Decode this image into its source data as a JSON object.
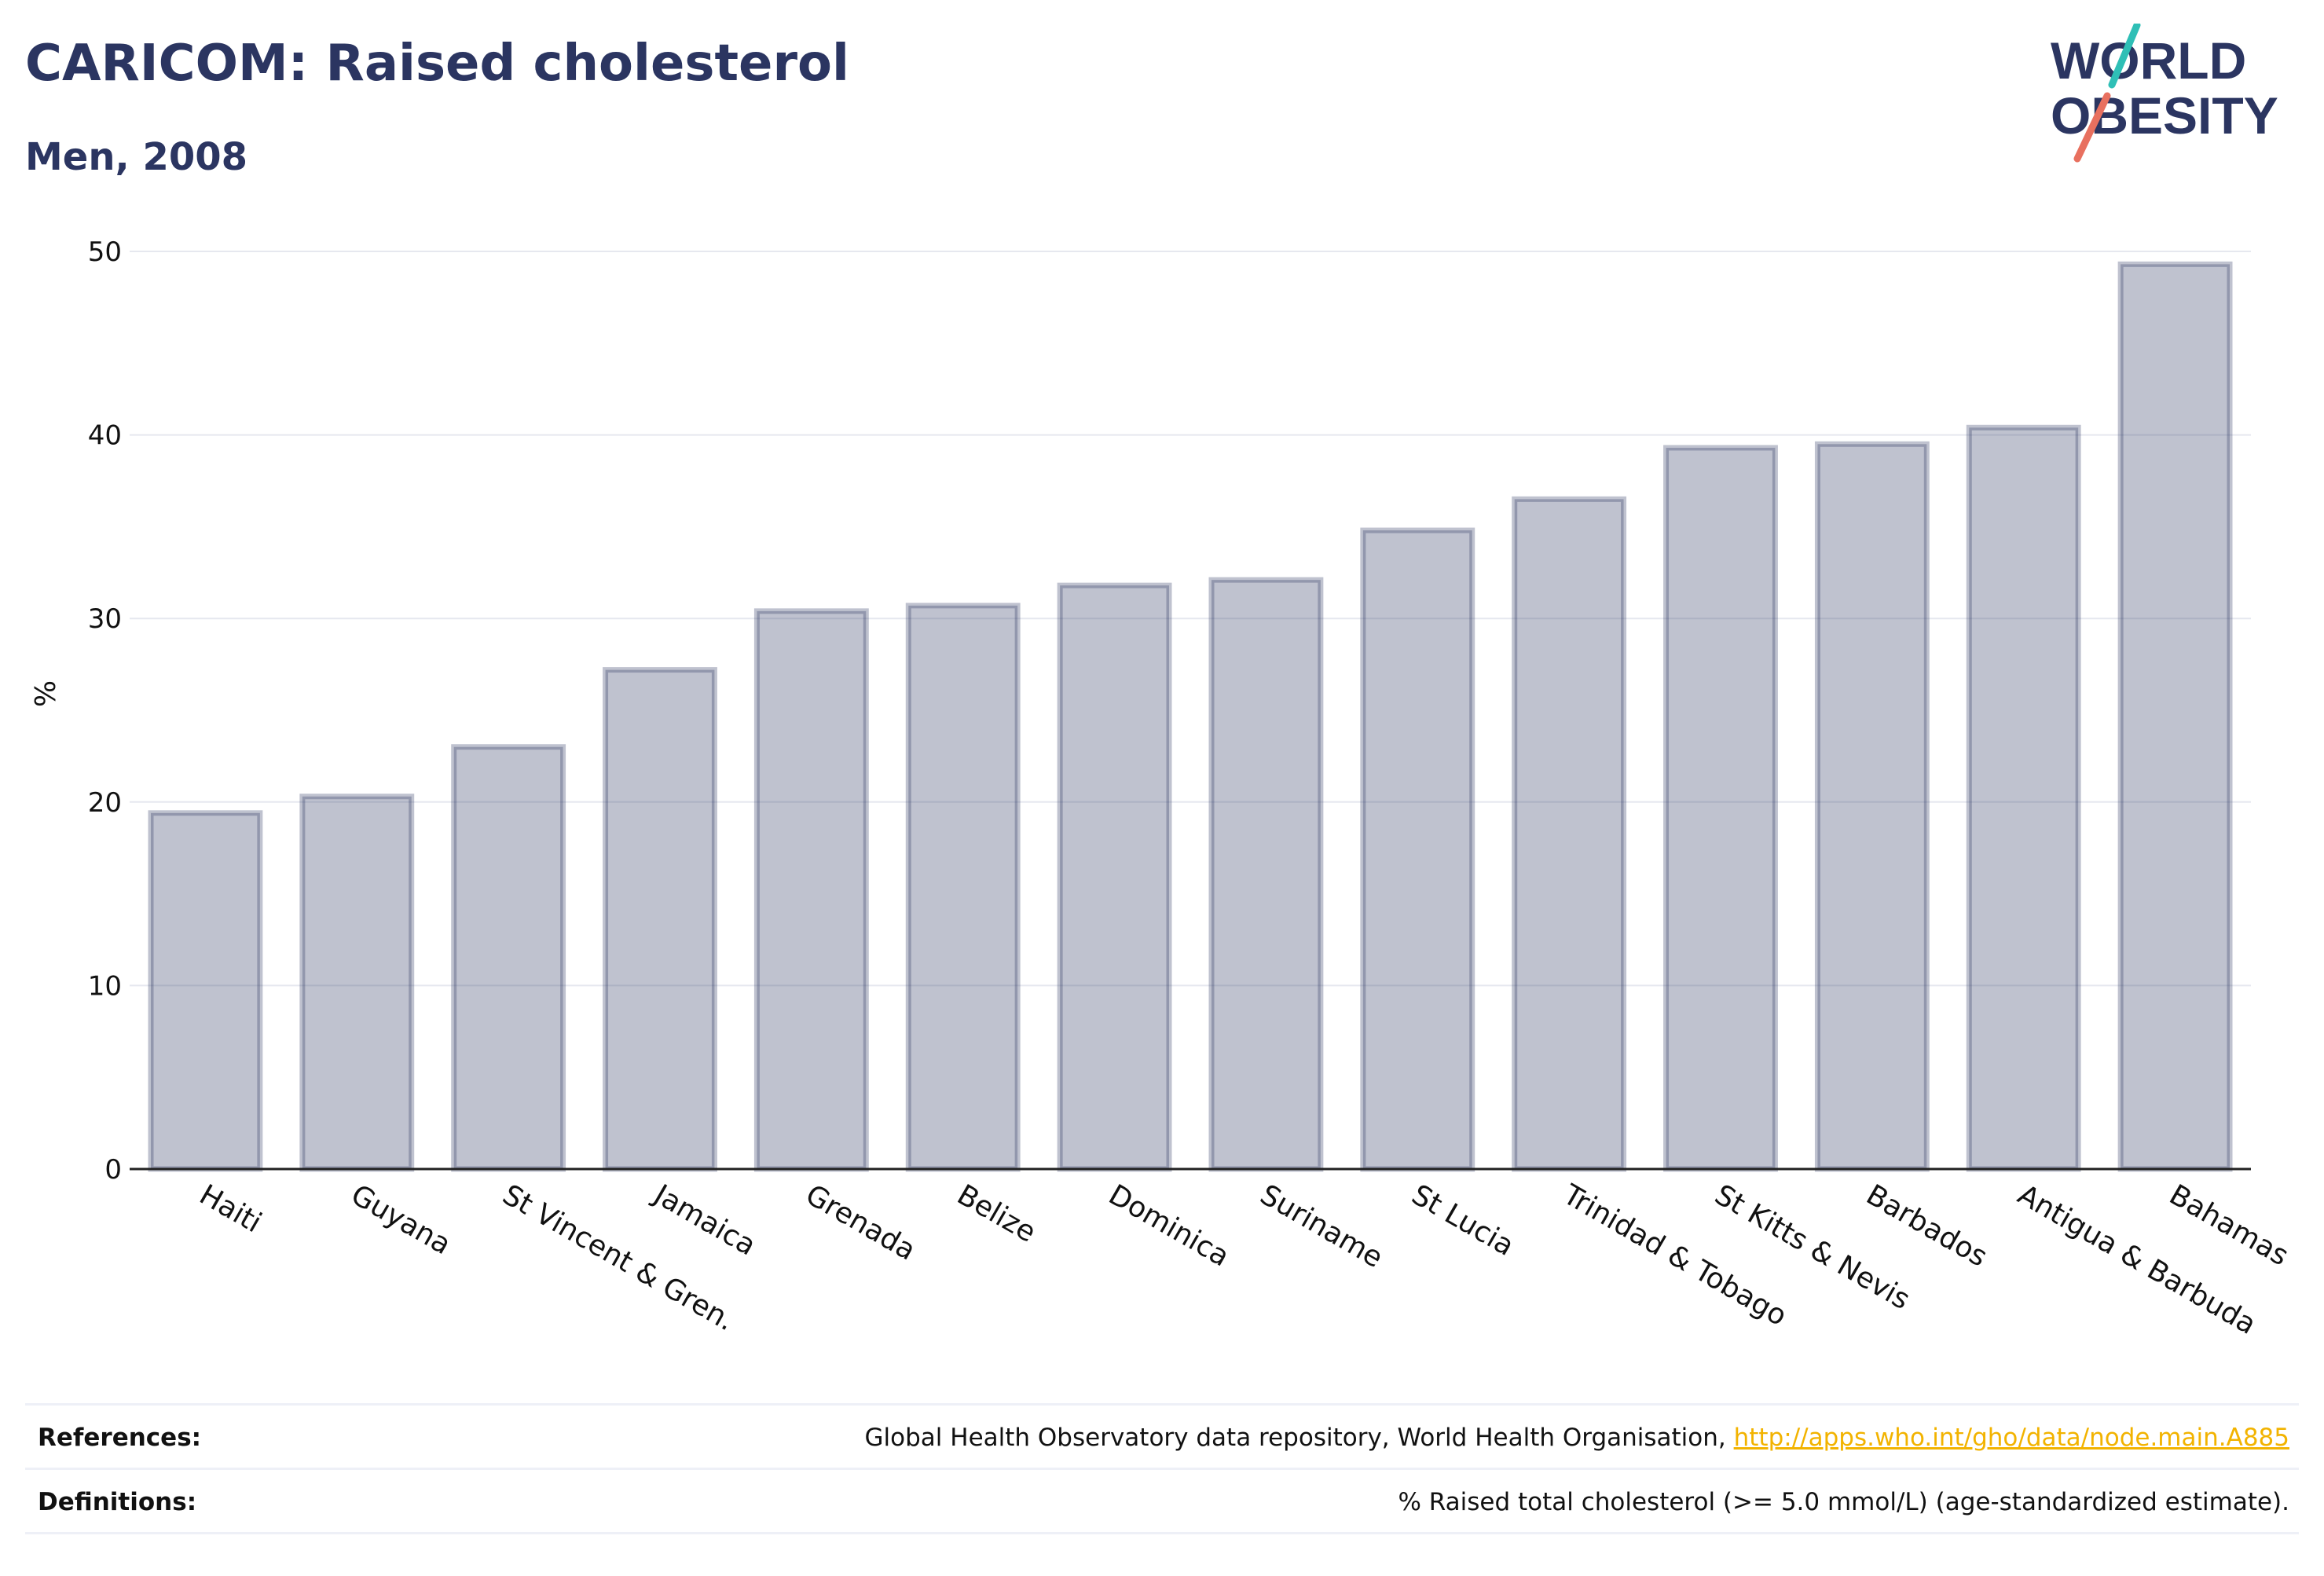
{
  "header": {
    "title": "CARICOM: Raised cholesterol",
    "subtitle": "Men, 2008"
  },
  "logo": {
    "line1": "WORLD",
    "line2": "OBESITY",
    "accent_colors": [
      "#2fbfb6",
      "#e8705f"
    ]
  },
  "chart_data": {
    "type": "bar",
    "title": "CARICOM: Raised cholesterol",
    "subtitle": "Men, 2008",
    "xlabel": "",
    "ylabel": "%",
    "ylim": [
      0,
      50
    ],
    "yticks": [
      0,
      10,
      20,
      30,
      40,
      50
    ],
    "grid": true,
    "bar_color": "#2b3561",
    "categories": [
      "Haiti",
      "Guyana",
      "St Vincent & Gren.",
      "Jamaica",
      "Grenada",
      "Belize",
      "Dominica",
      "Suriname",
      "St Lucia",
      "Trinidad & Tobago",
      "St Kitts & Nevis",
      "Barbados",
      "Antigua & Barbuda",
      "Bahamas"
    ],
    "values": [
      19.4,
      20.3,
      23.0,
      27.2,
      30.4,
      30.7,
      31.8,
      32.1,
      34.8,
      36.5,
      39.3,
      39.5,
      40.4,
      49.3
    ]
  },
  "footer": {
    "references_label": "References:",
    "references_text": "Global Health Observatory data repository, World Health Organisation, ",
    "references_link": "http://apps.who.int/gho/data/node.main.A885",
    "definitions_label": "Definitions:",
    "definitions_text": "% Raised total cholesterol (>= 5.0 mmol/L) (age-standardized estimate)."
  }
}
